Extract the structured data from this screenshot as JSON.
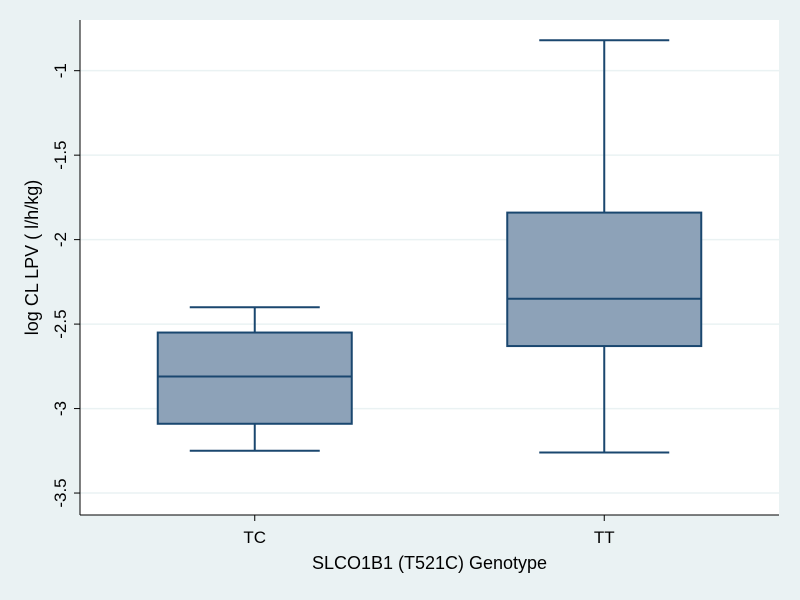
{
  "chart_data": {
    "type": "box",
    "xlabel": "SLCO1B1 (T521C) Genotype",
    "ylabel": "log CL LPV ( l/h/kg)",
    "categories": [
      "TC",
      "TT"
    ],
    "boxes": [
      {
        "category": "TC",
        "whisker_low": -3.25,
        "q1": -3.09,
        "median": -2.81,
        "q3": -2.55,
        "whisker_high": -2.4
      },
      {
        "category": "TT",
        "whisker_low": -3.26,
        "q1": -2.63,
        "median": -2.35,
        "q3": -1.84,
        "whisker_high": -0.82
      }
    ],
    "yticks": [
      -3.5,
      -3,
      -2.5,
      -2,
      -1.5,
      -1
    ],
    "ytick_labels": [
      "-3.5",
      "-3",
      "-2.5",
      "-2",
      "-1.5",
      "-1"
    ],
    "ylim": [
      -3.63,
      -0.7
    ],
    "grid": true,
    "colors": {
      "background": "#eaf2f3",
      "plot_background": "#ffffff",
      "box_fill": "#8da2b8",
      "box_stroke": "#1a476f",
      "grid": "#eaf2f3",
      "axis": "#000000"
    }
  }
}
